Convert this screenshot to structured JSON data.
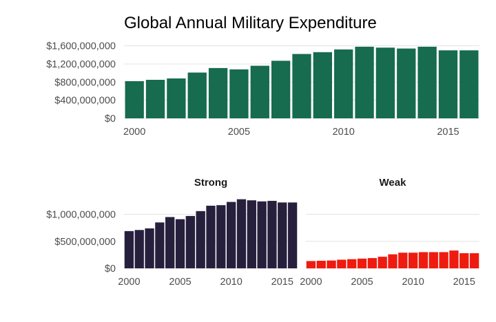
{
  "chart_data": [
    {
      "type": "bar",
      "title": "Global Annual Military Expenditure",
      "xlabel": "",
      "ylabel": "",
      "x": [
        2000,
        2001,
        2002,
        2003,
        2004,
        2005,
        2006,
        2007,
        2008,
        2009,
        2010,
        2011,
        2012,
        2013,
        2014,
        2015,
        2016
      ],
      "values": [
        820000000,
        850000000,
        880000000,
        1010000000,
        1110000000,
        1080000000,
        1160000000,
        1270000000,
        1420000000,
        1460000000,
        1520000000,
        1580000000,
        1560000000,
        1540000000,
        1580000000,
        1500000000,
        1500000000
      ],
      "color": "#176b4f",
      "ylim": [
        0,
        1700000000
      ],
      "yticks": [
        "$0",
        "$400,000,000",
        "$800,000,000",
        "$1,200,000,000",
        "$1,600,000,000"
      ],
      "ytick_values": [
        0,
        400000000,
        800000000,
        1200000000,
        1600000000
      ],
      "xticks": [
        "2000",
        "2005",
        "2010",
        "2015"
      ],
      "xtick_values": [
        2000,
        2005,
        2010,
        2015
      ],
      "grid": true
    },
    {
      "type": "bar",
      "title": "Strong",
      "xlabel": "",
      "ylabel": "",
      "x": [
        2000,
        2001,
        2002,
        2003,
        2004,
        2005,
        2006,
        2007,
        2008,
        2009,
        2010,
        2011,
        2012,
        2013,
        2014,
        2015,
        2016
      ],
      "values": [
        690000000,
        710000000,
        740000000,
        850000000,
        950000000,
        910000000,
        970000000,
        1060000000,
        1160000000,
        1170000000,
        1230000000,
        1280000000,
        1260000000,
        1240000000,
        1250000000,
        1220000000,
        1220000000
      ],
      "color": "#27203d",
      "ylim": [
        0,
        1300000000
      ],
      "yticks": [
        "$0",
        "$500,000,000",
        "$1,000,000,000"
      ],
      "ytick_values": [
        0,
        500000000,
        1000000000
      ],
      "xticks": [
        "2000",
        "2005",
        "2010",
        "2015"
      ],
      "xtick_values": [
        2000,
        2005,
        2010,
        2015
      ],
      "grid": true
    },
    {
      "type": "bar",
      "title": "Weak",
      "xlabel": "",
      "ylabel": "",
      "x": [
        2000,
        2001,
        2002,
        2003,
        2004,
        2005,
        2006,
        2007,
        2008,
        2009,
        2010,
        2011,
        2012,
        2013,
        2014,
        2015,
        2016
      ],
      "values": [
        135000000,
        140000000,
        145000000,
        160000000,
        170000000,
        180000000,
        190000000,
        215000000,
        260000000,
        290000000,
        290000000,
        300000000,
        300000000,
        300000000,
        330000000,
        280000000,
        280000000
      ],
      "color": "#ee1c10",
      "ylim": [
        0,
        1300000000
      ],
      "yticks": [],
      "ytick_values": [
        0,
        500000000,
        1000000000
      ],
      "xticks": [
        "2000",
        "2005",
        "2010",
        "2015"
      ],
      "xtick_values": [
        2000,
        2005,
        2010,
        2015
      ],
      "grid": true
    }
  ]
}
